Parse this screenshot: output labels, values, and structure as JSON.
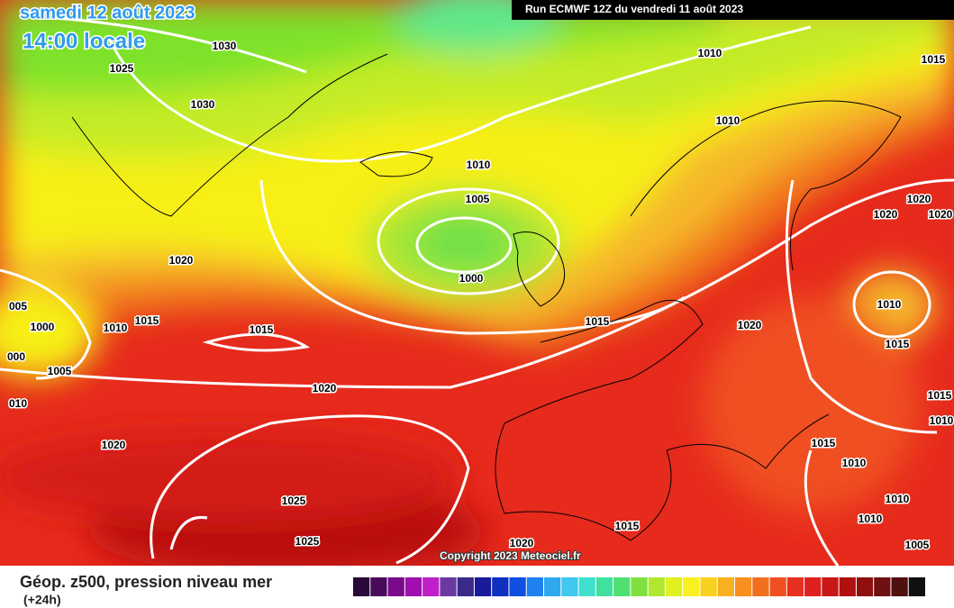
{
  "header": {
    "title": "samedi 12 août 2023",
    "subtitle": "14:00 locale",
    "run": "Run ECMWF 12Z du vendredi 11 août 2023"
  },
  "map": {
    "copyright": "Copyright 2023 Meteociel.fr",
    "isobar_labels": [
      "1030",
      "1025",
      "1030",
      "1010",
      "1015",
      "1010",
      "1010",
      "1005",
      "1000",
      "1020",
      "1020",
      "1020",
      "1020",
      "1010",
      "1015",
      "1015",
      "1020",
      "005",
      "1000",
      "1010",
      "1015",
      "1015",
      "000",
      "1005",
      "010",
      "1020",
      "1020",
      "1025",
      "1025",
      "1020",
      "1015",
      "1015",
      "1010",
      "1010",
      "1010",
      "1015",
      "1010",
      "1005"
    ]
  },
  "footer": {
    "legend_title": "Géop. z500, pression niveau mer",
    "lead_time": "(+24h)"
  }
}
